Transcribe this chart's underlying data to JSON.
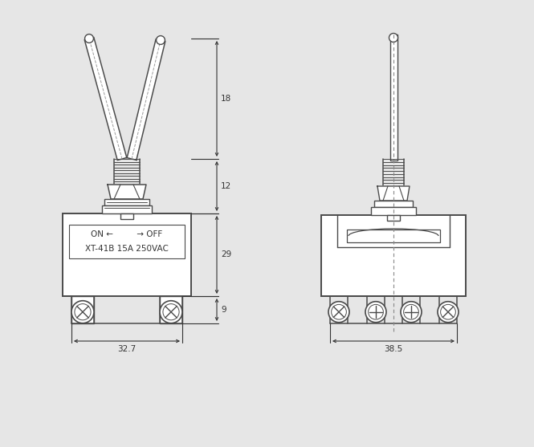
{
  "bg_color": "#e6e6e6",
  "line_color": "#4a4a4a",
  "dim_color": "#333333",
  "text_color": "#333333",
  "label_text_1": "ON ←         → OFF",
  "model_text": "XT-41B 15A 250VAC",
  "dim_18": "18",
  "dim_12": "12",
  "dim_29": "29",
  "dim_9": "9",
  "dim_327": "32.7",
  "dim_385": "38.5",
  "figw": 6.65,
  "figh": 5.57,
  "dpi": 100
}
